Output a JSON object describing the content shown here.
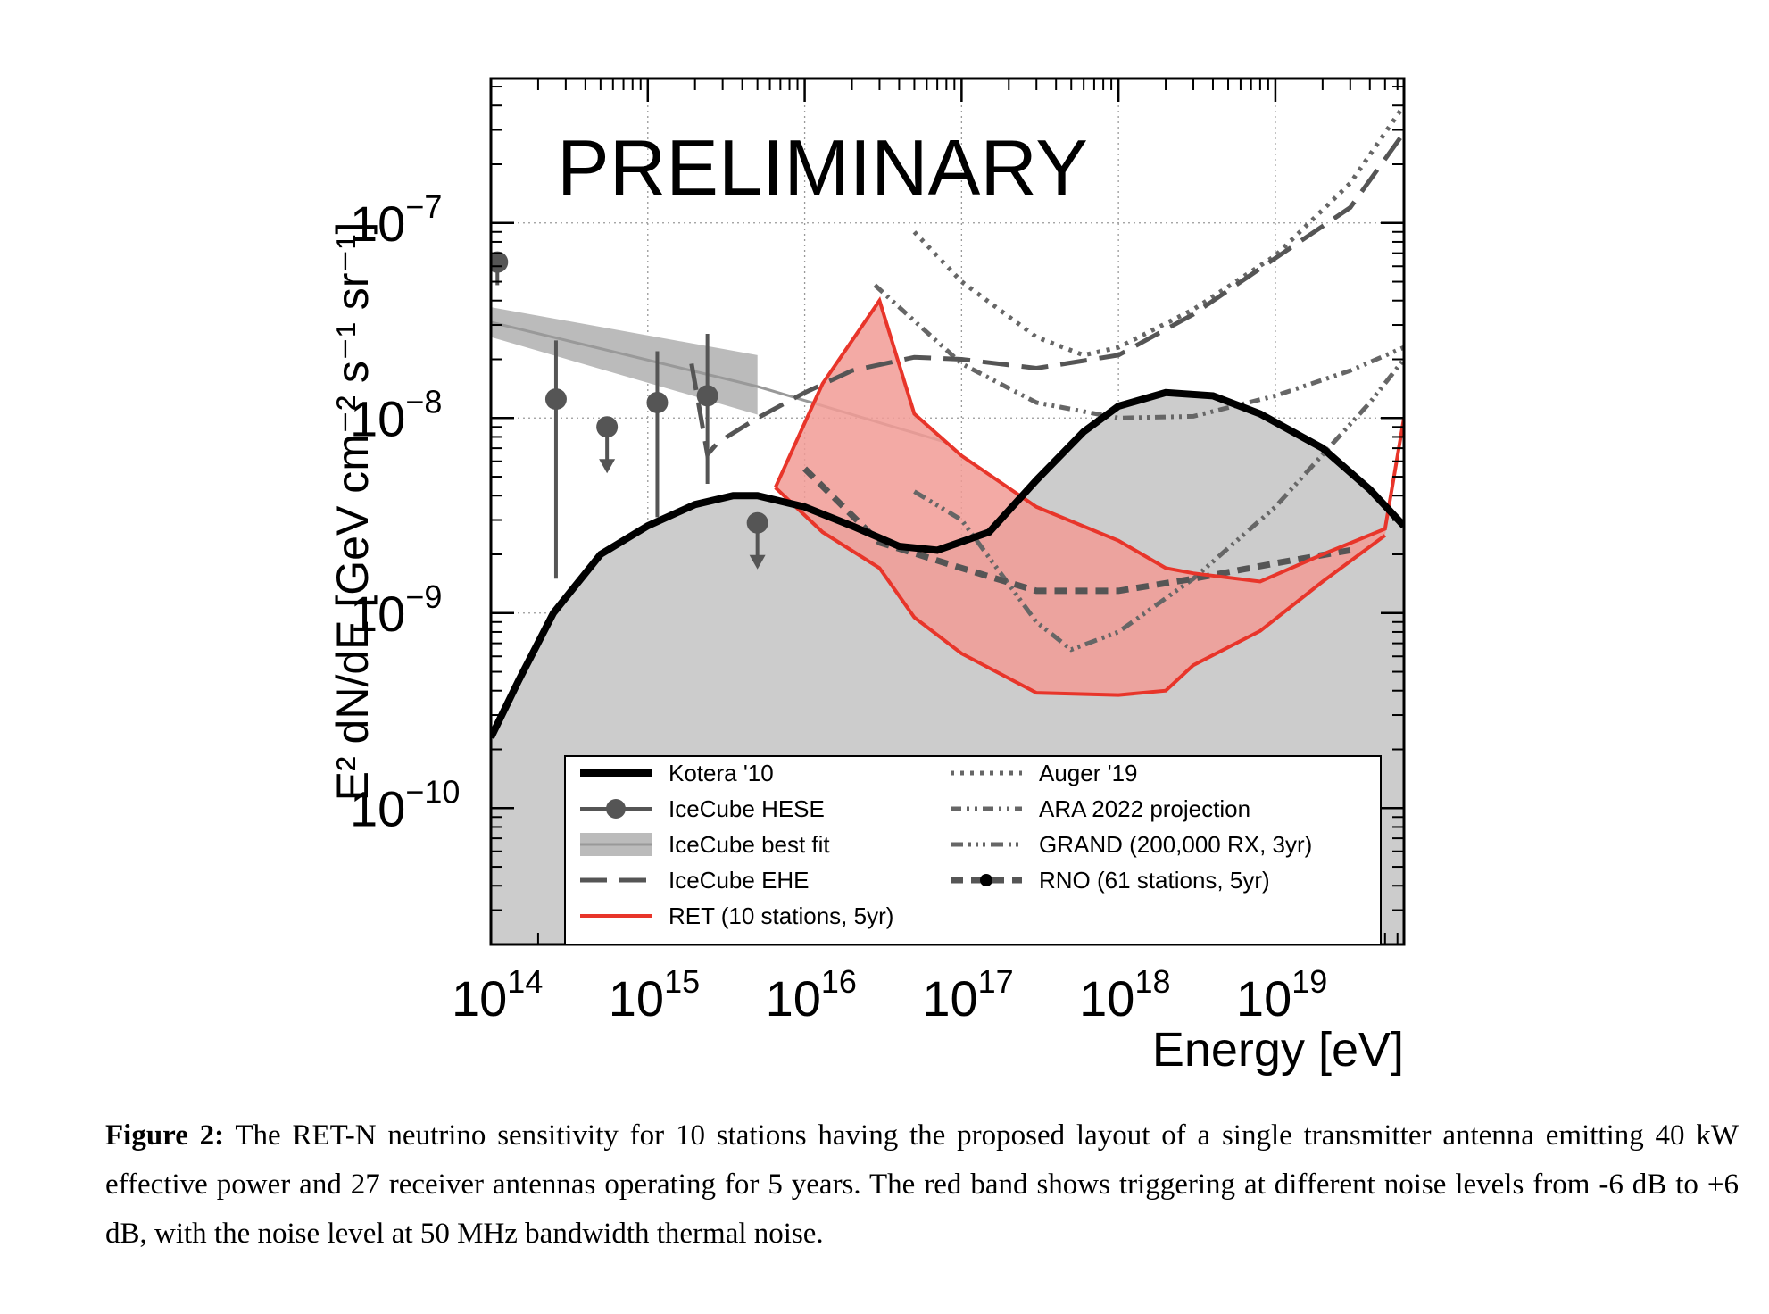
{
  "watermark": "PRELIMINARY",
  "caption": {
    "label": "Figure 2:",
    "text": "The RET-N neutrino sensitivity for 10 stations having the proposed layout of a single transmitter antenna emitting 40 kW effective power and 27 receiver antennas operating for 5 years. The red band shows triggering at different noise levels from -6 dB to +6 dB, with the noise level at 50 MHz bandwidth thermal noise."
  },
  "chart_data": {
    "type": "line",
    "xlabel": "Energy [eV]",
    "ylabel": "E² dN/dE [GeV cm⁻² s⁻¹ sr⁻¹]",
    "xscale": "log",
    "yscale": "log",
    "xlim": [
      100000000000000.0,
      6.6e+19
    ],
    "ylim": [
      2e-11,
      5.5e-07
    ],
    "grid": true,
    "legend_position": "bottom-right",
    "x_ticks": [
      {
        "base": "10",
        "exp": "14",
        "value": 100000000000000.0
      },
      {
        "base": "10",
        "exp": "15",
        "value": 1000000000000000.0
      },
      {
        "base": "10",
        "exp": "16",
        "value": 1e+16
      },
      {
        "base": "10",
        "exp": "17",
        "value": 1e+17
      },
      {
        "base": "10",
        "exp": "18",
        "value": 1e+18
      },
      {
        "base": "10",
        "exp": "19",
        "value": 1e+19
      }
    ],
    "y_ticks": [
      {
        "base": "10",
        "exp": "−10",
        "value": 1e-10
      },
      {
        "base": "10",
        "exp": "−9",
        "value": 1e-09
      },
      {
        "base": "10",
        "exp": "−8",
        "value": 1e-08
      },
      {
        "base": "10",
        "exp": "−7",
        "value": 1e-07
      }
    ],
    "series": [
      {
        "name": "Kotera '10",
        "style": "solid-thick",
        "color": "#000000",
        "fill": "#cccccc",
        "x": [
          100000000000000.0,
          150000000000000.0,
          250000000000000.0,
          500000000000000.0,
          1000000000000000.0,
          2000000000000000.0,
          3500000000000000.0,
          5000000000000000.0,
          1e+16,
          2e+16,
          4e+16,
          7e+16,
          1.5e+17,
          3e+17,
          6e+17,
          1e+18,
          2e+18,
          4e+18,
          8e+18,
          2e+19,
          4e+19,
          6.6e+19
        ],
        "y": [
          2.3e-10,
          4.5e-10,
          1e-09,
          2e-09,
          2.8e-09,
          3.6e-09,
          4e-09,
          4e-09,
          3.5e-09,
          2.8e-09,
          2.2e-09,
          2.1e-09,
          2.6e-09,
          4.8e-09,
          8.5e-09,
          1.15e-08,
          1.35e-08,
          1.3e-08,
          1.05e-08,
          7e-09,
          4.3e-09,
          2.8e-09
        ]
      },
      {
        "name": "IceCube HESE",
        "style": "points",
        "color": "#555555",
        "points": [
          {
            "x": 110000000000000.0,
            "y": 6.3e-08,
            "lo": 4.8e-08,
            "hi": 6.3e-08,
            "ul": false
          },
          {
            "x": 260000000000000.0,
            "y": 1.25e-08,
            "lo": 1.5e-09,
            "hi": 2.5e-08,
            "ul": false
          },
          {
            "x": 550000000000000.0,
            "y": 9e-09,
            "ul": true
          },
          {
            "x": 1150000000000000.0,
            "y": 1.2e-08,
            "lo": 3.1e-09,
            "hi": 2.2e-08,
            "ul": false
          },
          {
            "x": 2400000000000000.0,
            "y": 1.3e-08,
            "lo": 4.6e-09,
            "hi": 2.7e-08,
            "ul": false
          },
          {
            "x": 5000000000000000.0,
            "y": 2.9e-09,
            "ul": true
          }
        ]
      },
      {
        "name": "IceCube best fit",
        "style": "band",
        "color": "#999999",
        "fill": "#bbbbbb",
        "x": [
          100000000000000.0,
          5000000000000000.0
        ],
        "y_upper": [
          3.7e-08,
          2.1e-08
        ],
        "y_lower": [
          2.6e-08,
          1.04e-08
        ],
        "best": {
          "x": [
            100000000000000.0,
            5000000000000000.0,
            8e+16
          ],
          "y": [
            3.1e-08,
            1.45e-08,
            7.5e-09
          ]
        }
      },
      {
        "name": "IceCube EHE",
        "style": "long-dash",
        "color": "#555555",
        "x": [
          1900000000000000.0,
          2400000000000000.0,
          2800000000000000.0,
          5000000000000000.0,
          1e+16,
          2e+16,
          5e+16,
          1e+17,
          3e+17,
          1e+18,
          3e+18,
          1e+19,
          3e+19,
          6.6e+19
        ],
        "y": [
          1.9e-08,
          6.5e-09,
          7.5e-09,
          1e-08,
          1.35e-08,
          1.75e-08,
          2.05e-08,
          2e-08,
          1.8e-08,
          2.1e-08,
          3.4e-08,
          6.6e-08,
          1.2e-07,
          2.9e-07
        ]
      },
      {
        "name": "RET (10 stations, 5yr)",
        "style": "red-band",
        "color": "#e8352a",
        "fill": "#f19b95",
        "upper": {
          "x": [
            6500000000000000.0,
            1.3e+16,
            3e+16,
            5e+16,
            1e+17,
            3e+17,
            1e+18,
            2e+18,
            3e+18,
            8e+18,
            2e+19,
            5e+19,
            6.6e+19
          ],
          "y": [
            4.4e-09,
            1.5e-08,
            4e-08,
            1.05e-08,
            6.4e-09,
            3.5e-09,
            2.35e-09,
            1.7e-09,
            1.6e-09,
            1.45e-09,
            2e-09,
            2.7e-09,
            1e-08
          ]
        },
        "lower": {
          "x": [
            6500000000000000.0,
            1.3e+16,
            3e+16,
            5e+16,
            1e+17,
            3e+17,
            1e+18,
            2e+18,
            3e+18,
            8e+18,
            2e+19,
            5e+19
          ],
          "y": [
            4.4e-09,
            2.6e-09,
            1.7e-09,
            9.5e-10,
            6.2e-10,
            3.9e-10,
            3.8e-10,
            4e-10,
            5.4e-10,
            8.1e-10,
            1.45e-09,
            2.5e-09
          ]
        }
      },
      {
        "name": "Auger '19",
        "style": "dot",
        "color": "#666666",
        "x": [
          5e+16,
          1e+17,
          3e+17,
          6e+17,
          1e+18,
          3e+18,
          1e+19,
          3e+19,
          6.6e+19
        ],
        "y": [
          9e-08,
          5e-08,
          2.6e-08,
          2.1e-08,
          2.3e-08,
          3.6e-08,
          6.8e-08,
          1.6e-07,
          4e-07
        ]
      },
      {
        "name": "ARA 2022 projection",
        "style": "dash-dot-dot",
        "color": "#666666",
        "x": [
          2.8e+16,
          1e+17,
          3e+17,
          1e+18,
          3e+18,
          1e+19,
          3e+19,
          6.6e+19
        ],
        "y": [
          4.8e-08,
          1.9e-08,
          1.2e-08,
          1e-08,
          1.02e-08,
          1.3e-08,
          1.75e-08,
          2.3e-08
        ]
      },
      {
        "name": "GRAND (200,000 RX, 3yr)",
        "style": "dash-triple-dot",
        "color": "#666666",
        "x": [
          5e+16,
          1e+17,
          3e+17,
          5e+17,
          1e+18,
          3e+18,
          1e+19,
          2e+19,
          4e+19,
          6.6e+19
        ],
        "y": [
          4.2e-09,
          3e-09,
          9e-10,
          6.5e-10,
          8e-10,
          1.5e-09,
          3.5e-09,
          6.5e-09,
          1.2e-08,
          2e-08
        ]
      },
      {
        "name": "RNO (61 stations, 5yr)",
        "style": "heavy-dash",
        "color": "#555555",
        "x": [
          1e+16,
          3e+16,
          1e+17,
          3e+17,
          1e+18,
          3e+18,
          1e+19,
          3e+19
        ],
        "y": [
          5.5e-09,
          2.3e-09,
          1.7e-09,
          1.3e-09,
          1.3e-09,
          1.5e-09,
          1.8e-09,
          2.1e-09
        ]
      }
    ]
  }
}
